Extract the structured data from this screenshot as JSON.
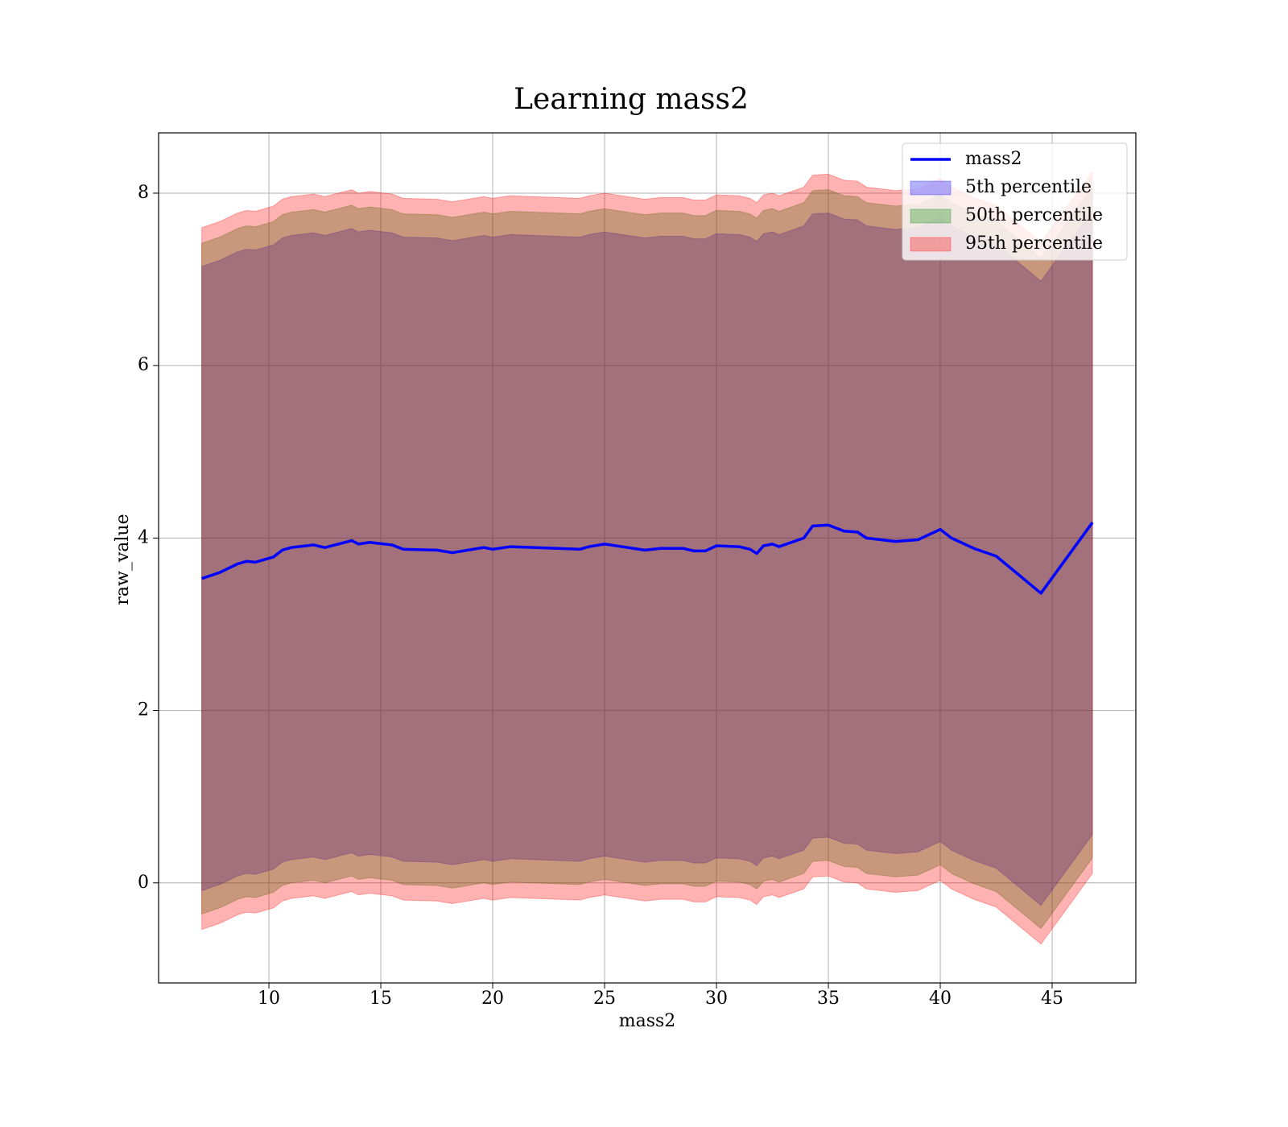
{
  "chart_data": {
    "type": "line",
    "title": "Learning mass2",
    "xlabel": "mass2",
    "ylabel": "raw_value",
    "xlim": [
      5.07,
      48.74
    ],
    "ylim": [
      -1.16,
      8.7
    ],
    "xticks": [
      10,
      15,
      20,
      25,
      30,
      35,
      40,
      45
    ],
    "yticks": [
      0,
      2,
      4,
      6,
      8
    ],
    "grid": true,
    "legend": "upper right",
    "x": [
      7.0,
      7.8,
      8.6,
      9.0,
      9.4,
      10.2,
      10.6,
      11.0,
      12.0,
      12.5,
      13.7,
      14.0,
      14.5,
      15.5,
      16.0,
      17.5,
      18.2,
      19.6,
      20.0,
      20.8,
      23.9,
      24.3,
      25.0,
      26.8,
      27.5,
      28.5,
      29.0,
      29.5,
      30.0,
      31.0,
      31.5,
      31.8,
      32.1,
      32.5,
      32.8,
      33.9,
      34.3,
      35.0,
      35.7,
      36.3,
      36.7,
      38.0,
      39.0,
      40.0,
      40.5,
      41.5,
      42.5,
      44.5,
      46.8
    ],
    "series": [
      {
        "name": "mass2",
        "color": "#0000ff",
        "values": [
          3.53,
          3.6,
          3.7,
          3.73,
          3.72,
          3.78,
          3.86,
          3.89,
          3.92,
          3.89,
          3.97,
          3.93,
          3.95,
          3.92,
          3.87,
          3.86,
          3.83,
          3.89,
          3.87,
          3.9,
          3.87,
          3.9,
          3.93,
          3.86,
          3.88,
          3.88,
          3.85,
          3.85,
          3.91,
          3.9,
          3.87,
          3.82,
          3.91,
          3.93,
          3.9,
          4.0,
          4.14,
          4.15,
          4.08,
          4.07,
          4.0,
          3.96,
          3.98,
          4.1,
          4.0,
          3.88,
          3.79,
          3.36,
          4.18
        ]
      }
    ],
    "bands": [
      {
        "name": "5th percentile",
        "color": "#0000ff",
        "upper": [
          7.15,
          7.22,
          7.32,
          7.35,
          7.34,
          7.4,
          7.48,
          7.51,
          7.54,
          7.51,
          7.59,
          7.55,
          7.57,
          7.54,
          7.49,
          7.48,
          7.45,
          7.51,
          7.49,
          7.52,
          7.49,
          7.52,
          7.55,
          7.48,
          7.5,
          7.5,
          7.47,
          7.47,
          7.53,
          7.52,
          7.49,
          7.44,
          7.53,
          7.55,
          7.52,
          7.62,
          7.76,
          7.77,
          7.7,
          7.69,
          7.62,
          7.58,
          7.6,
          7.72,
          7.62,
          7.5,
          7.41,
          6.98,
          7.8
        ],
        "lower": [
          -0.09,
          -0.02,
          0.08,
          0.11,
          0.1,
          0.16,
          0.24,
          0.27,
          0.3,
          0.27,
          0.35,
          0.31,
          0.33,
          0.3,
          0.25,
          0.24,
          0.21,
          0.27,
          0.25,
          0.28,
          0.25,
          0.28,
          0.31,
          0.24,
          0.26,
          0.26,
          0.23,
          0.23,
          0.29,
          0.28,
          0.25,
          0.2,
          0.29,
          0.31,
          0.28,
          0.38,
          0.52,
          0.53,
          0.46,
          0.45,
          0.38,
          0.34,
          0.36,
          0.48,
          0.38,
          0.26,
          0.17,
          -0.26,
          0.56
        ]
      },
      {
        "name": "50th percentile",
        "color": "#008000",
        "upper": [
          7.42,
          7.49,
          7.59,
          7.62,
          7.61,
          7.67,
          7.75,
          7.78,
          7.81,
          7.78,
          7.86,
          7.82,
          7.84,
          7.81,
          7.76,
          7.75,
          7.72,
          7.78,
          7.76,
          7.79,
          7.76,
          7.79,
          7.82,
          7.75,
          7.77,
          7.77,
          7.74,
          7.74,
          7.8,
          7.79,
          7.76,
          7.71,
          7.8,
          7.82,
          7.79,
          7.89,
          8.03,
          8.04,
          7.97,
          7.96,
          7.89,
          7.85,
          7.87,
          7.99,
          7.89,
          7.77,
          7.68,
          7.25,
          8.07
        ],
        "lower": [
          -0.36,
          -0.29,
          -0.19,
          -0.16,
          -0.17,
          -0.11,
          -0.03,
          0.0,
          0.03,
          0.0,
          0.08,
          0.04,
          0.06,
          0.03,
          -0.02,
          -0.03,
          -0.06,
          0.0,
          -0.02,
          0.01,
          -0.02,
          0.01,
          0.04,
          -0.03,
          -0.01,
          -0.01,
          -0.04,
          -0.04,
          0.02,
          0.01,
          -0.02,
          -0.07,
          0.02,
          0.04,
          0.01,
          0.11,
          0.25,
          0.26,
          0.19,
          0.18,
          0.11,
          0.07,
          0.09,
          0.21,
          0.11,
          -0.01,
          -0.1,
          -0.53,
          0.29
        ]
      },
      {
        "name": "95th percentile",
        "color": "#ff0000",
        "upper": [
          7.6,
          7.67,
          7.77,
          7.8,
          7.79,
          7.85,
          7.93,
          7.96,
          7.99,
          7.96,
          8.04,
          8.0,
          8.02,
          7.99,
          7.94,
          7.93,
          7.9,
          7.96,
          7.94,
          7.97,
          7.94,
          7.97,
          8.0,
          7.93,
          7.95,
          7.95,
          7.92,
          7.92,
          7.98,
          7.97,
          7.94,
          7.89,
          7.98,
          8.0,
          7.97,
          8.07,
          8.21,
          8.22,
          8.15,
          8.14,
          8.07,
          8.03,
          8.05,
          8.17,
          8.07,
          7.95,
          7.86,
          7.43,
          8.25
        ],
        "lower": [
          -0.54,
          -0.47,
          -0.37,
          -0.34,
          -0.35,
          -0.29,
          -0.21,
          -0.18,
          -0.15,
          -0.18,
          -0.1,
          -0.14,
          -0.12,
          -0.15,
          -0.2,
          -0.21,
          -0.24,
          -0.18,
          -0.2,
          -0.17,
          -0.2,
          -0.17,
          -0.14,
          -0.21,
          -0.19,
          -0.19,
          -0.22,
          -0.22,
          -0.16,
          -0.17,
          -0.2,
          -0.25,
          -0.16,
          -0.14,
          -0.17,
          -0.07,
          0.07,
          0.08,
          0.01,
          0.0,
          -0.07,
          -0.11,
          -0.09,
          0.03,
          -0.07,
          -0.19,
          -0.28,
          -0.71,
          0.11
        ]
      }
    ]
  }
}
